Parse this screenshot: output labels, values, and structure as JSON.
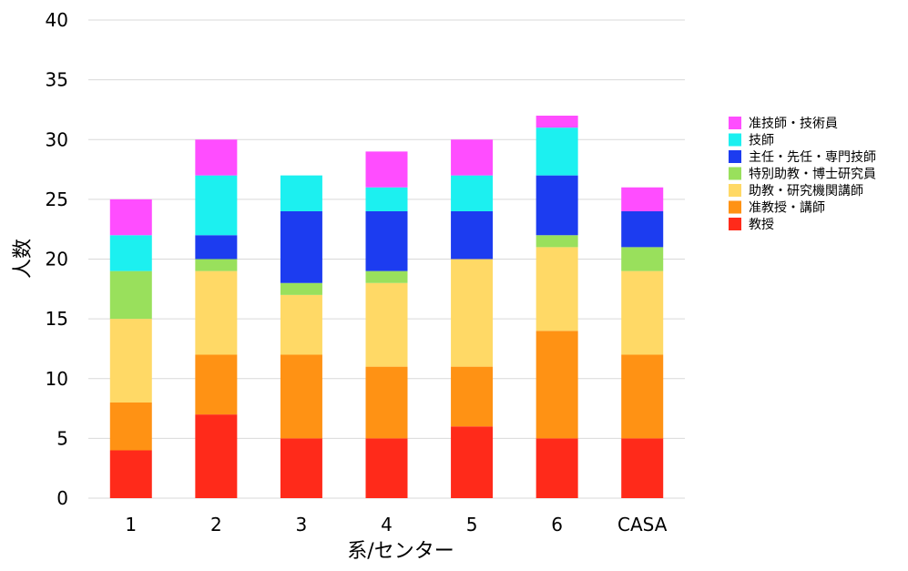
{
  "chart_data": {
    "type": "bar",
    "stacked": true,
    "xlabel": "系/センター",
    "ylabel": "人数",
    "ylim": [
      0,
      40
    ],
    "yticks": [
      0,
      5,
      10,
      15,
      20,
      25,
      30,
      35,
      40
    ],
    "grid": true,
    "legend_position": "right",
    "categories": [
      "1",
      "2",
      "3",
      "4",
      "5",
      "6",
      "CASA"
    ],
    "series": [
      {
        "name": "教授",
        "color": "#ff2a1a",
        "values": [
          4,
          7,
          5,
          5,
          6,
          5,
          5
        ]
      },
      {
        "name": "准教授・講師",
        "color": "#ff9214",
        "values": [
          4,
          5,
          7,
          6,
          5,
          9,
          7
        ]
      },
      {
        "name": "助教・研究機関講師",
        "color": "#ffd966",
        "values": [
          7,
          7,
          5,
          7,
          9,
          7,
          7
        ]
      },
      {
        "name": "特別助教・博士研究員",
        "color": "#99e05c",
        "values": [
          4,
          1,
          1,
          1,
          0,
          1,
          2
        ]
      },
      {
        "name": "主任・先任・専門技師",
        "color": "#1c3cf0",
        "values": [
          0,
          2,
          6,
          5,
          4,
          5,
          3
        ]
      },
      {
        "name": "技師",
        "color": "#1cf0f0",
        "values": [
          3,
          5,
          3,
          2,
          3,
          4,
          0
        ]
      },
      {
        "name": "准技師・技術員",
        "color": "#ff4dff",
        "values": [
          3,
          3,
          0,
          3,
          3,
          1,
          2
        ]
      }
    ]
  }
}
